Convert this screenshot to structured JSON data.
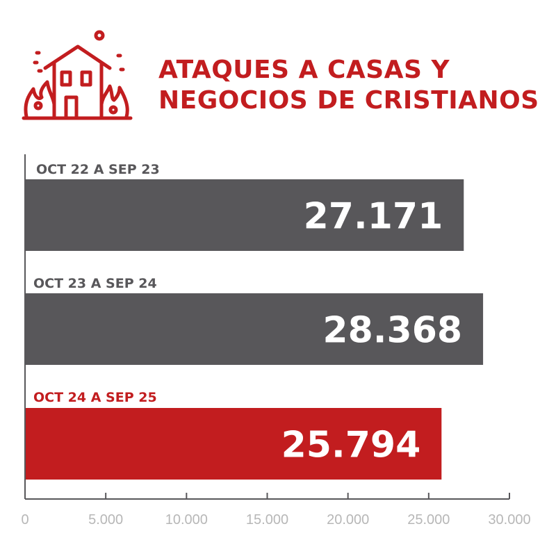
{
  "title_lines": [
    "ATAQUES A CASAS Y",
    "NEGOCIOS DE CRISTIANOS"
  ],
  "icon": "burning-house-icon",
  "colors": {
    "accent": "#c21d1f",
    "bar_default": "#58575a",
    "label_default": "#58575a",
    "axis": "#58575a",
    "tick_text": "#b7b7b7"
  },
  "chart_data": {
    "type": "bar",
    "orientation": "horizontal",
    "categories": [
      "OCT 22 A SEP 23",
      "OCT 23 A SEP 24",
      "OCT 24 A SEP 25"
    ],
    "values": [
      27171,
      28368,
      25794
    ],
    "value_labels": [
      "27.171",
      "28.368",
      "25.794"
    ],
    "highlight_index": 2,
    "xlim": [
      0,
      30000
    ],
    "ticks": [
      0,
      5000,
      10000,
      15000,
      20000,
      25000,
      30000
    ],
    "tick_labels": [
      "0",
      "5.000",
      "10.000",
      "15.000",
      "20.000",
      "25.000",
      "30.000"
    ],
    "grid": false
  }
}
